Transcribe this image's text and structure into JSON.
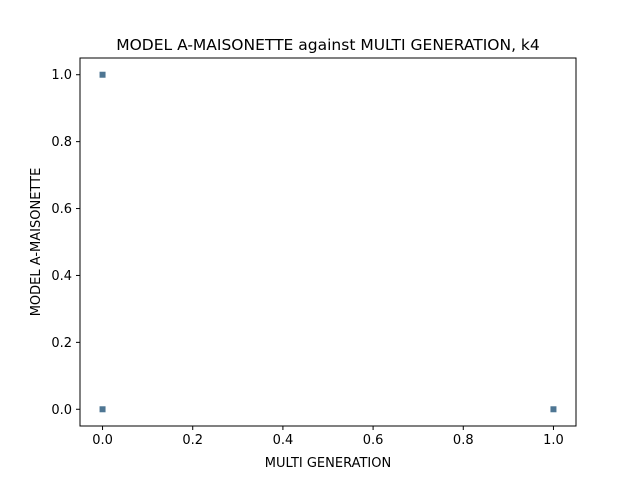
{
  "chart_data": {
    "type": "scatter",
    "title": "MODEL A-MAISONETTE against MULTI GENERATION, k4",
    "xlabel": "MULTI GENERATION",
    "ylabel": "MODEL A-MAISONETTE",
    "xlim": [
      -0.05,
      1.05
    ],
    "ylim": [
      -0.05,
      1.05
    ],
    "xticks": [
      0.0,
      0.2,
      0.4,
      0.6,
      0.8,
      1.0
    ],
    "yticks": [
      0.0,
      0.2,
      0.4,
      0.6,
      0.8,
      1.0
    ],
    "xtick_labels": [
      "0.0",
      "0.2",
      "0.4",
      "0.6",
      "0.8",
      "1.0"
    ],
    "ytick_labels": [
      "0.0",
      "0.2",
      "0.4",
      "0.6",
      "0.8",
      "1.0"
    ],
    "grid": false,
    "marker_color": "#3b6787",
    "points": [
      {
        "x": 0.0,
        "y": 1.0
      },
      {
        "x": 0.0,
        "y": 0.0
      },
      {
        "x": 1.0,
        "y": 0.0
      }
    ]
  }
}
